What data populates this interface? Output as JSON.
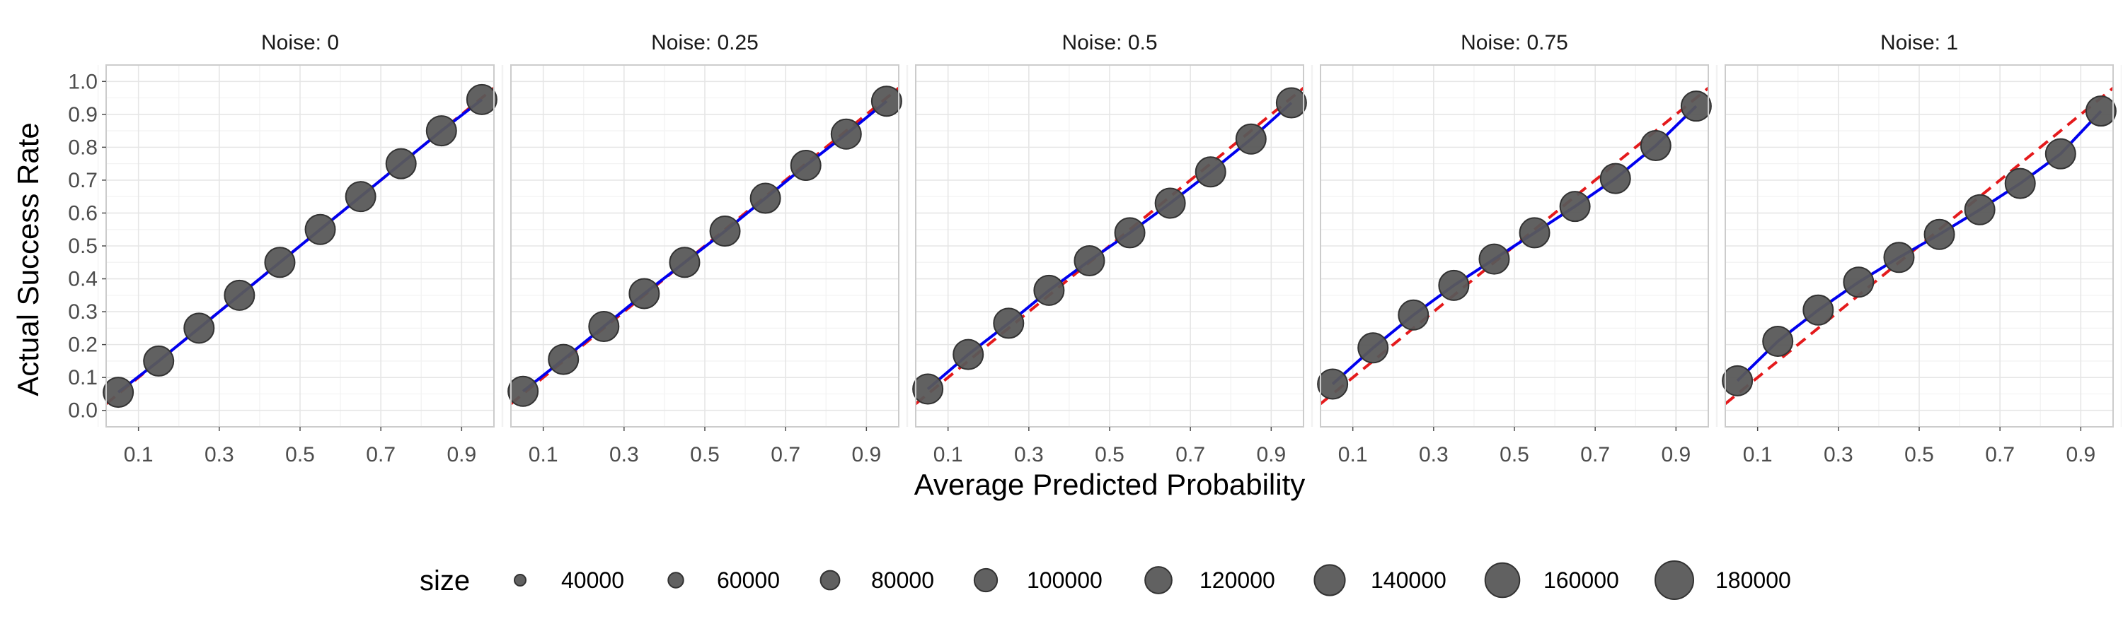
{
  "chart_data": {
    "type": "scatter",
    "xlabel": "Average Predicted Probability",
    "ylabel": "Actual Success Rate",
    "xlim": [
      0.02,
      0.98
    ],
    "ylim": [
      -0.05,
      1.05
    ],
    "x_ticks": [
      "0.1",
      "0.3",
      "0.5",
      "0.7",
      "0.9"
    ],
    "y_ticks": [
      "0.0",
      "0.1",
      "0.2",
      "0.3",
      "0.4",
      "0.5",
      "0.6",
      "0.7",
      "0.8",
      "0.9",
      "1.0"
    ],
    "grid": true,
    "reference_line": {
      "style": "dashed",
      "color": "#e41a1c",
      "slope": 1,
      "intercept": 0
    },
    "fit_line_color": "#0000ee",
    "point_color": "#595959",
    "panels": [
      {
        "label": "Noise: 0",
        "x": [
          0.05,
          0.15,
          0.25,
          0.35,
          0.45,
          0.55,
          0.65,
          0.75,
          0.85,
          0.95
        ],
        "y": [
          0.055,
          0.15,
          0.25,
          0.35,
          0.45,
          0.55,
          0.65,
          0.75,
          0.85,
          0.945
        ]
      },
      {
        "label": "Noise: 0.25",
        "x": [
          0.05,
          0.15,
          0.25,
          0.35,
          0.45,
          0.55,
          0.65,
          0.75,
          0.85,
          0.95
        ],
        "y": [
          0.058,
          0.155,
          0.255,
          0.355,
          0.45,
          0.545,
          0.645,
          0.745,
          0.84,
          0.94
        ]
      },
      {
        "label": "Noise: 0.5",
        "x": [
          0.05,
          0.15,
          0.25,
          0.35,
          0.45,
          0.55,
          0.65,
          0.75,
          0.85,
          0.95
        ],
        "y": [
          0.065,
          0.17,
          0.265,
          0.365,
          0.455,
          0.54,
          0.63,
          0.725,
          0.825,
          0.935
        ]
      },
      {
        "label": "Noise: 0.75",
        "x": [
          0.05,
          0.15,
          0.25,
          0.35,
          0.45,
          0.55,
          0.65,
          0.75,
          0.85,
          0.95
        ],
        "y": [
          0.08,
          0.19,
          0.29,
          0.38,
          0.46,
          0.54,
          0.62,
          0.705,
          0.805,
          0.925
        ]
      },
      {
        "label": "Noise: 1",
        "x": [
          0.05,
          0.15,
          0.25,
          0.35,
          0.45,
          0.55,
          0.65,
          0.75,
          0.85,
          0.95
        ],
        "y": [
          0.09,
          0.21,
          0.305,
          0.39,
          0.465,
          0.535,
          0.61,
          0.69,
          0.78,
          0.91
        ]
      }
    ],
    "legend": {
      "title": "size",
      "position": "bottom",
      "items": [
        {
          "label": "40000",
          "value": 40000
        },
        {
          "label": "60000",
          "value": 60000
        },
        {
          "label": "80000",
          "value": 80000
        },
        {
          "label": "100000",
          "value": 100000
        },
        {
          "label": "120000",
          "value": 120000
        },
        {
          "label": "140000",
          "value": 140000
        },
        {
          "label": "160000",
          "value": 160000
        },
        {
          "label": "180000",
          "value": 180000
        }
      ]
    }
  }
}
